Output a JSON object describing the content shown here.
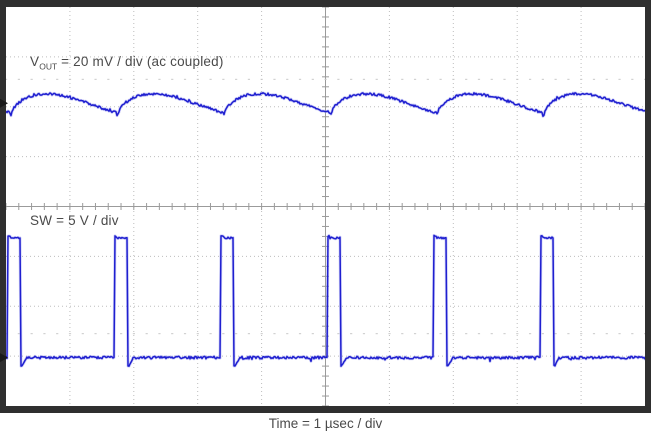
{
  "scope": {
    "labels": {
      "top_trace_prefix": "V",
      "top_trace_sub": "OUT",
      "top_trace_suffix": " = 20 mV / div (ac coupled)",
      "bottom_trace": "SW = 5 V / div",
      "time": "Time = 1 µsec / div"
    },
    "colors": {
      "background": "#ffffff",
      "frame": "#2f2f2f",
      "grid_dots": "#bdbdbd",
      "center_lines": "#9b9b9b",
      "ref_dots": "#c8c8c8",
      "trace": "#1f1fd0",
      "trace_soft": "#9a9bed",
      "marker": "#1a1a1a",
      "text": "#4a4a4a"
    }
  },
  "chart_data": {
    "type": "line",
    "instrument": "oscilloscope",
    "title": "",
    "x_axis": {
      "label": "Time = 1 µsec / div",
      "us_per_div": 1,
      "divisions": 10
    },
    "grid": {
      "horizontal_divisions": 10,
      "vertical_divisions": 8,
      "style": "dotted major grid, solid center crosshair with 0.2-div tick marks, 0%/100% dotted reference rows at ±2.55 div"
    },
    "series": [
      {
        "name": "VOUT",
        "label": "VOUT = 20 mV / div (ac coupled)",
        "mv_per_div": 20,
        "coupling": "ac",
        "waveform": "sawtooth-like output ripple, valleys aligned just after SW rising edges",
        "ripple_peak_to_peak_mV": 8,
        "center_div_from_top": 1.93,
        "amplitude_div": 0.38,
        "valley_offset_us": 0.055
      },
      {
        "name": "SW",
        "label": "SW = 5 V / div",
        "v_per_div": 5,
        "waveform": "narrow positive rectangular pulses with slight leading overshoot and post-fall undershoot, noisy 0 V baseline",
        "high_V": 11.8,
        "low_V": 0,
        "period_us": 1.666,
        "on_time_us": 0.2,
        "duty_pct": 12,
        "rising_edges_us": [
          0.031,
          1.706,
          3.365,
          5.039,
          6.698,
          8.372,
          10.031
        ],
        "baseline_div_from_top": 7.03,
        "high_div_from_top": 4.63,
        "overshoot_div": 0.035,
        "undershoot_div": 0.16
      }
    ]
  }
}
